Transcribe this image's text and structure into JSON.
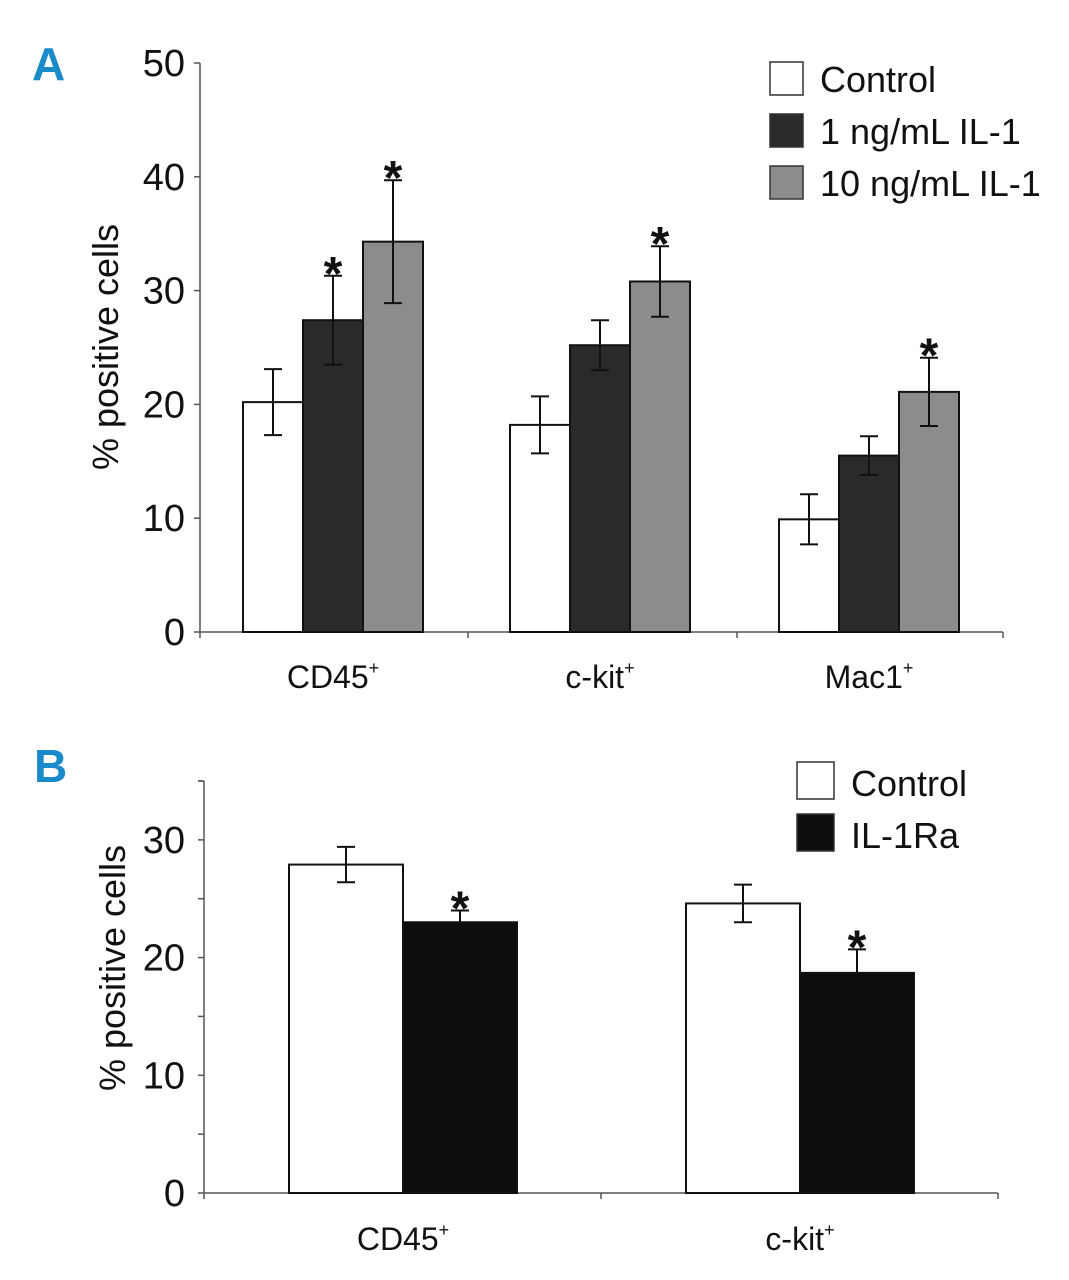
{
  "chart_data": [
    {
      "type": "bar",
      "panel_label": "A",
      "ylabel": "% positive cells",
      "ylim": [
        0,
        50
      ],
      "yticks": [
        "0",
        "10",
        "20",
        "30",
        "40",
        "50"
      ],
      "categories": [
        "CD45",
        "c-kit",
        "Mac1"
      ],
      "category_superscript": "+",
      "legend_position": "top-right",
      "series": [
        {
          "name": "Control",
          "color": "#ffffff",
          "values": [
            20.2,
            18.2,
            9.9
          ],
          "errors": [
            2.9,
            2.5,
            2.2
          ],
          "significant": [
            false,
            false,
            false
          ]
        },
        {
          "name": "1 ng/mL IL-1",
          "color": "#2a2a2a",
          "values": [
            27.4,
            25.2,
            15.5
          ],
          "errors": [
            3.9,
            2.2,
            1.7
          ],
          "significant": [
            true,
            false,
            false
          ]
        },
        {
          "name": "10 ng/mL IL-1",
          "color": "#8c8c8c",
          "values": [
            34.3,
            30.8,
            21.1
          ],
          "errors": [
            5.4,
            3.1,
            3.0
          ],
          "significant": [
            true,
            true,
            true
          ]
        }
      ],
      "significance_marker": "*"
    },
    {
      "type": "bar",
      "panel_label": "B",
      "ylabel": "% positive cells",
      "ylim": [
        0,
        35
      ],
      "yticks": [
        "0",
        "10",
        "20",
        "30"
      ],
      "categories": [
        "CD45",
        "c-kit"
      ],
      "category_superscript": "+",
      "legend_position": "top-right",
      "series": [
        {
          "name": "Control",
          "color": "#ffffff",
          "values": [
            27.9,
            24.6
          ],
          "errors": [
            1.5,
            1.6
          ],
          "significant": [
            false,
            false
          ]
        },
        {
          "name": "IL-1Ra",
          "color": "#0d0d0d",
          "values": [
            23.0,
            18.7
          ],
          "errors": [
            1.0,
            2.0
          ],
          "significant": [
            true,
            true
          ]
        }
      ],
      "significance_marker": "*"
    }
  ]
}
